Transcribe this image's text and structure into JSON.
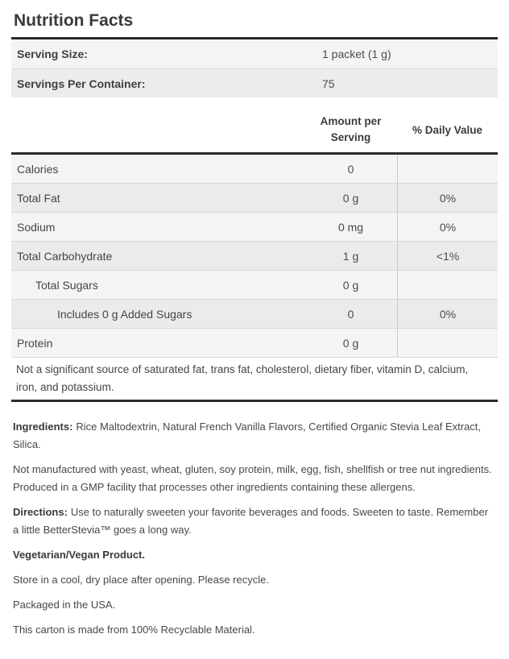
{
  "title": "Nutrition Facts",
  "serving_info": {
    "rows": [
      {
        "label": "Serving Size:",
        "value": "1 packet (1 g)"
      },
      {
        "label": "Servings Per Container:",
        "value": "75"
      }
    ]
  },
  "nutrition_table": {
    "headers": {
      "amount": "Amount per Serving",
      "daily_value": "% Daily Value"
    },
    "rows": [
      {
        "label": "Calories",
        "amount": "0",
        "daily_value": ""
      },
      {
        "label": "Total Fat",
        "amount": "0 g",
        "daily_value": "0%"
      },
      {
        "label": "Sodium",
        "amount": "0 mg",
        "daily_value": "0%"
      },
      {
        "label": "Total Carbohydrate",
        "amount": "1 g",
        "daily_value": "<1%"
      },
      {
        "label": "Total Sugars",
        "amount": "0 g",
        "daily_value": ""
      },
      {
        "label": "Includes 0 g Added Sugars",
        "amount": "0",
        "daily_value": "0%"
      },
      {
        "label": "Protein",
        "amount": "0 g",
        "daily_value": ""
      }
    ],
    "footnote": "Not a significant source of saturated fat, trans fat, cholesterol, dietary fiber, vitamin D, calcium, iron, and potassium."
  },
  "details": {
    "ingredients_label": "Ingredients:",
    "ingredients_text": "Rice Maltodextrin, Natural French Vanilla Flavors, Certified Organic Stevia Leaf Extract, Silica.",
    "allergen_text": "Not manufactured with yeast, wheat, gluten, soy protein, milk, egg, fish, shellfish or tree nut ingredients. Produced in a GMP facility that processes other ingredients containing these allergens.",
    "directions_label": "Directions:",
    "directions_text": "Use to naturally sweeten your favorite beverages and foods. Sweeten to taste. Remember a little BetterStevia™ goes a long way.",
    "vegetarian_text": "Vegetarian/Vegan Product.",
    "storage_text": "Store in a cool, dry place after opening. Please recycle.",
    "packaging_text": "Packaged in the USA.",
    "recyclable_text": "This carton is made from 100% Recyclable Material."
  },
  "colors": {
    "bar": "#2b2b2b",
    "stripe_light": "#f4f4f4",
    "stripe_dark": "#ebebeb",
    "column_divider": "#c9c9c9",
    "text": "#454545"
  }
}
